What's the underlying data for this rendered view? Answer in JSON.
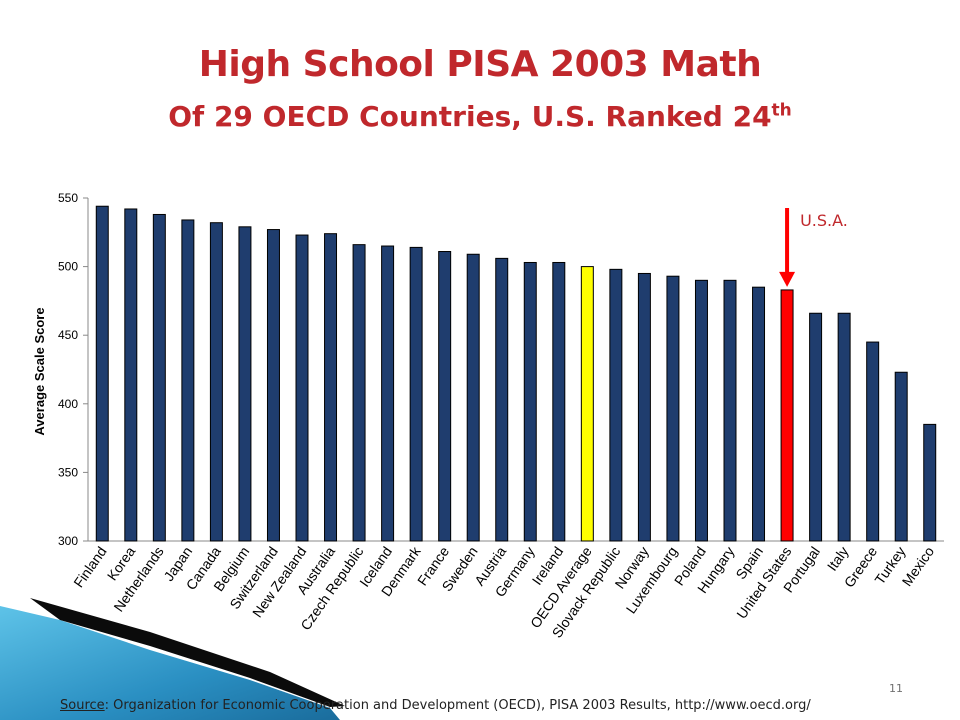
{
  "slide": {
    "title": "High School PISA 2003 Math",
    "subtitle_main": "Of 29 OECD Countries, U.S. Ranked 24",
    "subtitle_sup": "th",
    "page_number": "11",
    "source_label": "Source",
    "source_text": ": Organization for Economic Cooperation and Development (OECD), PISA 2003 Results, http://www.oecd.org/"
  },
  "chart_data": {
    "type": "bar",
    "ylabel": "Average Scale Score",
    "ylim": [
      300,
      550
    ],
    "yticks": [
      300,
      350,
      400,
      450,
      500,
      550
    ],
    "grid": false,
    "categories": [
      "Finland",
      "Korea",
      "Netherlands",
      "Japan",
      "Canada",
      "Belgium",
      "Switzerland",
      "New Zealand",
      "Australia",
      "Czech Republic",
      "Iceland",
      "Denmark",
      "France",
      "Sweden",
      "Austria",
      "Germany",
      "Ireland",
      "OECD Average",
      "Slovack Republic",
      "Norway",
      "Luxembourg",
      "Poland",
      "Hungary",
      "Spain",
      "United States",
      "Portugal",
      "Italy",
      "Greece",
      "Turkey",
      "Mexico"
    ],
    "values": [
      544,
      542,
      538,
      534,
      532,
      529,
      527,
      523,
      524,
      516,
      515,
      514,
      511,
      509,
      506,
      503,
      503,
      500,
      498,
      495,
      493,
      490,
      490,
      485,
      483,
      466,
      466,
      445,
      423,
      385
    ],
    "annotation": "U.S.A.",
    "colors": {
      "default": "#1f3d6e",
      "oecd_average": "#ffff00",
      "united_states": "#ff0000",
      "annotation": "#c0282c",
      "arrow": "#ff0000",
      "axis": "#888888"
    }
  }
}
